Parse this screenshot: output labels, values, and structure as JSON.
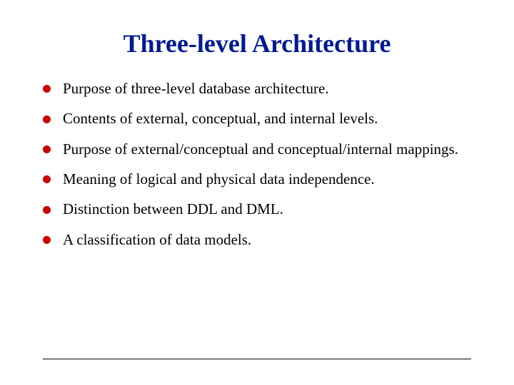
{
  "title": {
    "text": "Three-level Architecture",
    "color": "#001a93",
    "fontsize": 36
  },
  "bullets": {
    "items": [
      "Purpose of three-level database architecture.",
      "Contents of external, conceptual, and internal levels.",
      "Purpose of external/conceptual and  conceptual/internal mappings.",
      "Meaning of logical and physical data independence.",
      "Distinction between DDL and DML.",
      "A classification of data models."
    ],
    "text_color": "#000000",
    "dot_color": "#cc0000",
    "fontsize": 21
  },
  "divider": {
    "color": "#000000",
    "thickness": 1
  },
  "background_color": "#ffffff"
}
